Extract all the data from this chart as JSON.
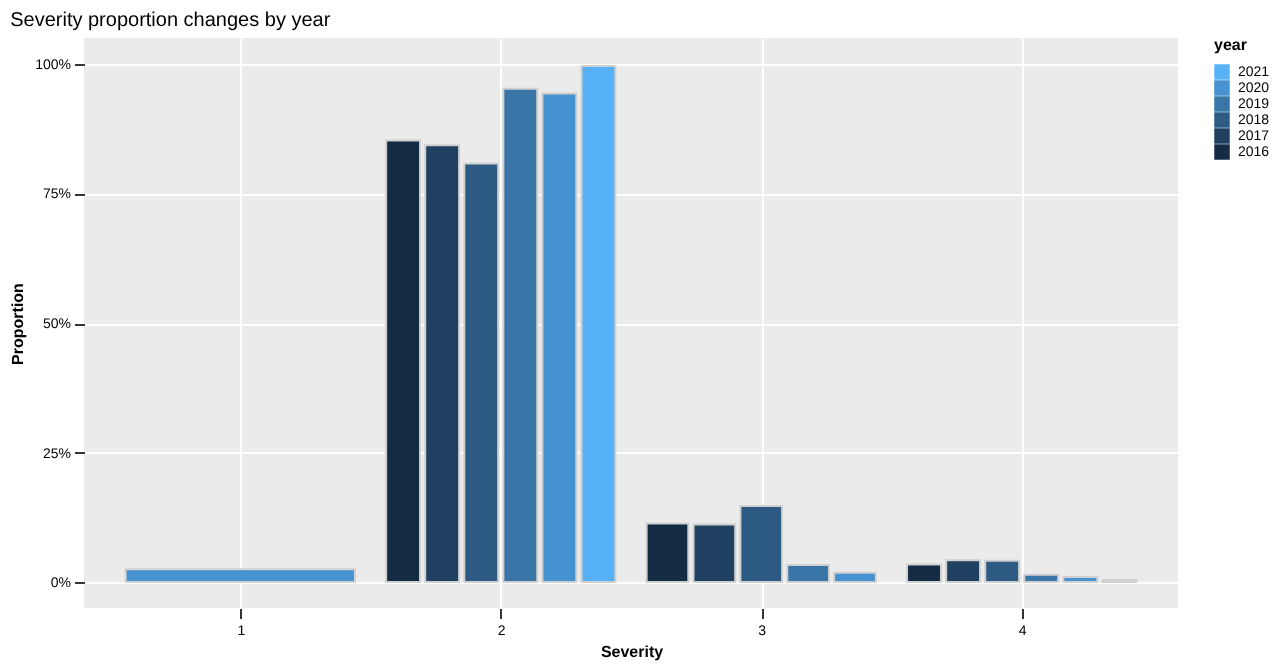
{
  "chart_data": {
    "type": "bar",
    "title": "Severity proportion changes by year",
    "xlabel": "Severity",
    "ylabel": "Proportion",
    "legend_title": "year",
    "categories": [
      "1",
      "2",
      "3",
      "4"
    ],
    "series": [
      {
        "name": "2016",
        "color": "#132b43",
        "values": [
          null,
          85.2,
          11.3,
          3.4
        ]
      },
      {
        "name": "2017",
        "color": "#1f4060",
        "values": [
          null,
          84.3,
          11.1,
          4.2
        ]
      },
      {
        "name": "2018",
        "color": "#2c5a83",
        "values": [
          null,
          80.8,
          14.7,
          4.1
        ]
      },
      {
        "name": "2019",
        "color": "#3975a7",
        "values": [
          null,
          95.2,
          3.3,
          1.4
        ]
      },
      {
        "name": "2020",
        "color": "#4691cf",
        "values": [
          2.5,
          94.3,
          1.8,
          1.0
        ]
      },
      {
        "name": "2021",
        "color": "#56b1f7",
        "values": [
          null,
          99.6,
          null,
          0.4
        ]
      }
    ],
    "ylim": [
      -5,
      105
    ],
    "yticks": [
      {
        "value": 0,
        "label": "0%"
      },
      {
        "value": 25,
        "label": "25%"
      },
      {
        "value": 50,
        "label": "50%"
      },
      {
        "value": 75,
        "label": "75%"
      },
      {
        "value": 100,
        "label": "100%"
      }
    ],
    "grid": true,
    "legend": "right"
  }
}
